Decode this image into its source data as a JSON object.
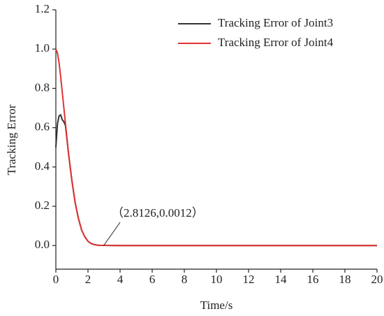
{
  "chart_data": {
    "type": "line",
    "x_label": "Time/s",
    "y_label": "Tracking Error",
    "x": [
      0,
      0.1,
      0.2,
      0.3,
      0.4,
      0.5,
      0.6,
      0.8,
      1,
      1.2,
      1.4,
      1.6,
      1.8,
      2,
      2.2,
      2.4,
      2.6,
      2.8,
      3,
      4,
      6,
      8,
      10,
      12,
      14,
      16,
      18,
      20
    ],
    "series": [
      {
        "name": "Tracking Error of Joint3",
        "color": "#333333",
        "values": [
          0.5,
          0.62,
          0.66,
          0.665,
          0.64,
          0.63,
          0.61,
          0.46,
          0.33,
          0.22,
          0.14,
          0.08,
          0.045,
          0.022,
          0.01,
          0.005,
          0.002,
          0.0012,
          0.0008,
          0,
          0,
          0,
          0,
          0,
          0,
          0,
          0,
          0
        ]
      },
      {
        "name": "Tracking Error of Joint4",
        "color": "#e03333",
        "values": [
          1.0,
          0.98,
          0.93,
          0.86,
          0.78,
          0.7,
          0.62,
          0.46,
          0.33,
          0.22,
          0.14,
          0.08,
          0.045,
          0.022,
          0.01,
          0.005,
          0.002,
          0.0012,
          0.0008,
          0,
          0,
          0,
          0,
          0,
          0,
          0,
          0,
          0
        ]
      }
    ],
    "annotation": "（2.8126,0.0012）",
    "xlim": [
      0,
      20
    ],
    "xticks": [
      0,
      2,
      4,
      6,
      8,
      10,
      12,
      14,
      16,
      18,
      20
    ],
    "ylim": [
      -0.12,
      1.2
    ],
    "yticks": [
      {
        "value": 0,
        "label": "0.0"
      },
      0.2,
      0.4,
      0.6,
      0.8,
      {
        "value": 1,
        "label": "1.0"
      },
      1.2
    ],
    "legend": "top-right"
  }
}
